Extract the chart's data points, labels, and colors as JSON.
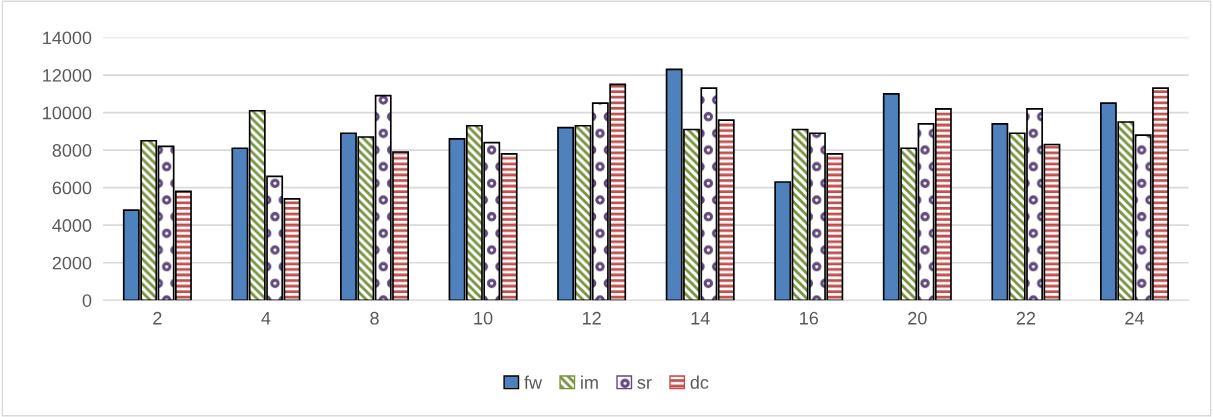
{
  "chart_data": {
    "type": "bar",
    "categories": [
      "2",
      "4",
      "8",
      "10",
      "12",
      "14",
      "16",
      "20",
      "22",
      "24"
    ],
    "series": [
      {
        "name": "fw",
        "color": "#4f81bd",
        "values": [
          4800,
          8100,
          8900,
          8600,
          9200,
          12300,
          6300,
          11000,
          9400,
          10500
        ]
      },
      {
        "name": "im",
        "color": "#77933c",
        "values": [
          8500,
          10100,
          8700,
          9300,
          9300,
          9100,
          9100,
          8100,
          8900,
          9500
        ]
      },
      {
        "name": "sr",
        "color": "#604a7b",
        "values": [
          8200,
          6600,
          10900,
          8400,
          10500,
          11300,
          8900,
          9400,
          10200,
          8800
        ]
      },
      {
        "name": "dc",
        "color": "#c0504d",
        "values": [
          5800,
          5400,
          7900,
          7800,
          11500,
          9600,
          7800,
          10200,
          8300,
          11300
        ]
      }
    ],
    "ylim": [
      0,
      14000
    ],
    "yticks": [
      0,
      2000,
      4000,
      6000,
      8000,
      10000,
      12000,
      14000
    ],
    "grid": "y",
    "legend": "bottom"
  }
}
